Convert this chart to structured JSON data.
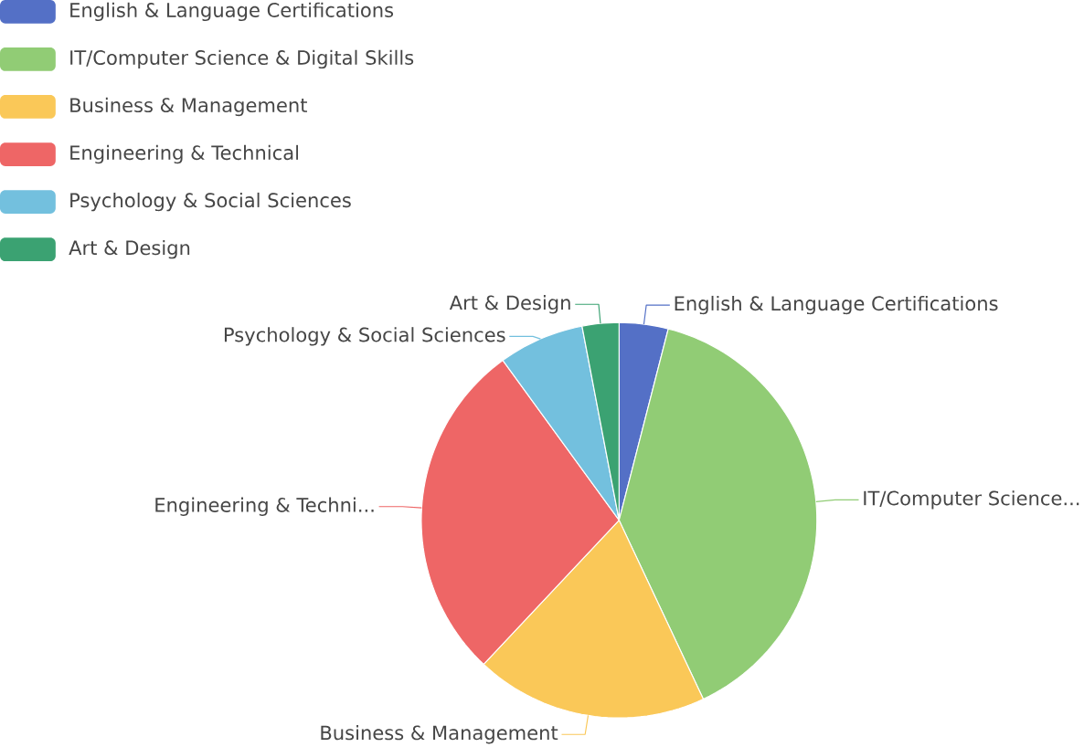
{
  "chart_data": {
    "type": "pie",
    "categories": [
      "English & Language Certifications",
      "IT/Computer Science & Digital Skills",
      "Business & Management",
      "Engineering & Technical",
      "Psychology & Social Sciences",
      "Art & Design"
    ],
    "values": [
      4,
      39,
      19,
      28,
      7,
      3
    ],
    "colors": [
      "#5470c6",
      "#91cc75",
      "#fac858",
      "#ee6666",
      "#73c0de",
      "#3ba272"
    ],
    "value_labels": [
      "English & Language Certifications",
      "IT/Computer Science...",
      "Business & Management",
      "Engineering & Techni...",
      "Psychology & Social Sciences",
      "Art & Design"
    ],
    "legend": "top left"
  }
}
